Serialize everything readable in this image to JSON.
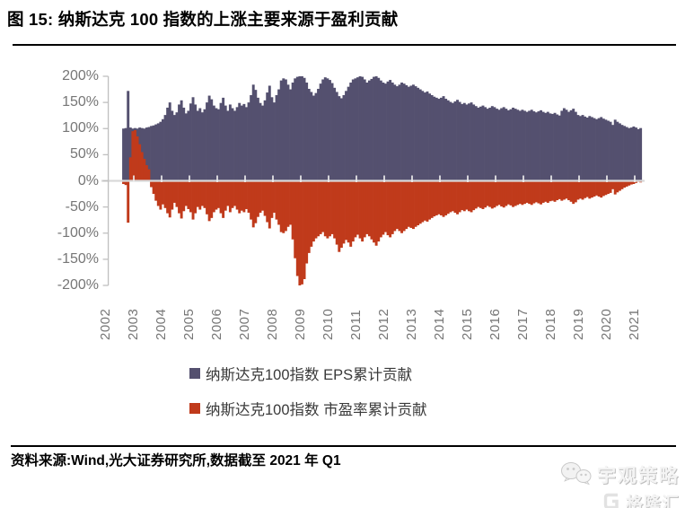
{
  "header": {
    "title": "图 15: 纳斯达克 100 指数的上涨主要来源于盈利贡献"
  },
  "footer": {
    "source": "资料来源:Wind,光大证券研究所,数据截至 2021 年 Q1"
  },
  "watermark": {
    "brand": "宇观策略",
    "platform": "格隆汇",
    "brand_icon": "wechat-bubbles-icon",
    "platform_icon": "gelonghui-g-logo-icon"
  },
  "chart_data": {
    "type": "bar",
    "title": "",
    "unit": "%",
    "x_start": "2002-08",
    "x_end": "2021-03",
    "x_year_labels": [
      "2002",
      "2003",
      "2004",
      "2005",
      "2006",
      "2007",
      "2008",
      "2009",
      "2010",
      "2011",
      "2012",
      "2013",
      "2014",
      "2015",
      "2016",
      "2017",
      "2018",
      "2019",
      "2020",
      "2021"
    ],
    "ylim": [
      -200,
      200
    ],
    "y_ticks": [
      {
        "v": 200,
        "label": "200%"
      },
      {
        "v": 150,
        "label": "150%"
      },
      {
        "v": 100,
        "label": "100%"
      },
      {
        "v": 50,
        "label": "50%"
      },
      {
        "v": 0,
        "label": "0%"
      },
      {
        "v": -50,
        "label": "-50%"
      },
      {
        "v": -100,
        "label": "-100%"
      },
      {
        "v": -150,
        "label": "-150%"
      },
      {
        "v": -200,
        "label": "-200%"
      }
    ],
    "grid": false,
    "legend_position": "bottom",
    "colors": {
      "axis": "#bfbfbf",
      "zero_line": "#d9d9d9",
      "year_tick": "#ececec",
      "tick_label": "#767676"
    },
    "legend": [
      {
        "label": "纳斯达克100指数 EPS累计贡献",
        "color": "#54506F"
      },
      {
        "label": "纳斯达克100指数 市盈率累计贡献",
        "color": "#C03A1B"
      }
    ],
    "series": [
      {
        "name": "纳斯达克100指数 EPS累计贡献",
        "color": "#54506F",
        "values": [
          100,
          101,
          172,
          102,
          100,
          101,
          100,
          102,
          101,
          100,
          102,
          103,
          105,
          106,
          108,
          110,
          113,
          118,
          126,
          140,
          150,
          134,
          126,
          131,
          146,
          154,
          140,
          129,
          134,
          148,
          160,
          146,
          134,
          139,
          131,
          137,
          150,
          163,
          156,
          144,
          139,
          137,
          149,
          159,
          144,
          134,
          146,
          139,
          134,
          141,
          149,
          144,
          147,
          141,
          150,
          164,
          184,
          174,
          159,
          149,
          144,
          154,
          169,
          182,
          160,
          150,
          164,
          175,
          192,
          196,
          194,
          184,
          175,
          188,
          196,
          199,
          200,
          200,
          197,
          188,
          176,
          170,
          163,
          168,
          176,
          186,
          194,
          198,
          196,
          193,
          187,
          178,
          170,
          162,
          158,
          164,
          172,
          180,
          188,
          194,
          196,
          198,
          200,
          199,
          194,
          188,
          192,
          195,
          199,
          200,
          197,
          192,
          188,
          186,
          190,
          193,
          188,
          184,
          181,
          184,
          188,
          186,
          183,
          180,
          182,
          184,
          181,
          178,
          175,
          172,
          169,
          171,
          167,
          164,
          161,
          159,
          157,
          159,
          162,
          157,
          154,
          151,
          149,
          152,
          155,
          151,
          147,
          149,
          146,
          148,
          150,
          146,
          143,
          140,
          142,
          144,
          141,
          138,
          140,
          143,
          141,
          138,
          136,
          139,
          141,
          138,
          135,
          137,
          140,
          138,
          136,
          134,
          136,
          134,
          132,
          134,
          136,
          133,
          131,
          133,
          135,
          132,
          130,
          132,
          129,
          128,
          130,
          127,
          125,
          134,
          139,
          136,
          132,
          135,
          138,
          132,
          126,
          124,
          126,
          123,
          121,
          124,
          122,
          120,
          118,
          120,
          122,
          119,
          117,
          115,
          113,
          107,
          117,
          113,
          110,
          107,
          105,
          103,
          101,
          102,
          104,
          102,
          99,
          101
        ]
      },
      {
        "name": "纳斯达克100指数 市盈率累计贡献",
        "color": "#C03A1B",
        "values": [
          -6,
          -8,
          -80,
          45,
          95,
          97,
          85,
          70,
          55,
          42,
          30,
          22,
          -12,
          -25,
          -38,
          -48,
          -55,
          -45,
          -52,
          -62,
          -70,
          -55,
          -42,
          -50,
          -62,
          -72,
          -58,
          -48,
          -54,
          -60,
          -74,
          -62,
          -50,
          -55,
          -48,
          -52,
          -64,
          -77,
          -71,
          -60,
          -55,
          -52,
          -62,
          -71,
          -57,
          -48,
          -60,
          -52,
          -48,
          -55,
          -62,
          -57,
          -60,
          -54,
          -61,
          -74,
          -89,
          -81,
          -69,
          -61,
          -57,
          -67,
          -79,
          -91,
          -71,
          -61,
          -74,
          -84,
          -98,
          -100,
          -96,
          -88,
          -84,
          -112,
          -148,
          -182,
          -200,
          -198,
          -188,
          -158,
          -138,
          -126,
          -116,
          -110,
          -106,
          -102,
          -98,
          -106,
          -110,
          -106,
          -102,
          -110,
          -122,
          -136,
          -128,
          -120,
          -113,
          -118,
          -126,
          -116,
          -108,
          -103,
          -110,
          -116,
          -108,
          -102,
          -106,
          -112,
          -118,
          -124,
          -116,
          -108,
          -103,
          -98,
          -104,
          -108,
          -102,
          -96,
          -92,
          -96,
          -100,
          -96,
          -92,
          -88,
          -90,
          -92,
          -88,
          -85,
          -82,
          -79,
          -76,
          -78,
          -74,
          -71,
          -68,
          -66,
          -64,
          -66,
          -69,
          -66,
          -63,
          -60,
          -58,
          -61,
          -64,
          -60,
          -56,
          -58,
          -55,
          -58,
          -60,
          -56,
          -53,
          -50,
          -52,
          -54,
          -51,
          -48,
          -50,
          -53,
          -51,
          -48,
          -46,
          -49,
          -51,
          -48,
          -45,
          -47,
          -50,
          -48,
          -46,
          -44,
          -46,
          -44,
          -42,
          -44,
          -46,
          -43,
          -41,
          -43,
          -45,
          -42,
          -40,
          -42,
          -39,
          -38,
          -40,
          -37,
          -35,
          -38,
          -36,
          -34,
          -37,
          -40,
          -44,
          -41,
          -36,
          -34,
          -36,
          -33,
          -31,
          -34,
          -32,
          -30,
          -28,
          -30,
          -32,
          -29,
          -27,
          -25,
          -23,
          -16,
          -26,
          -22,
          -19,
          -16,
          -13,
          -11,
          -9,
          -7,
          -6,
          -4,
          -2,
          -3
        ]
      }
    ]
  }
}
